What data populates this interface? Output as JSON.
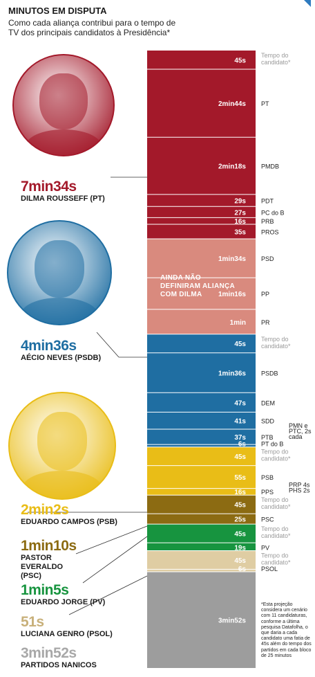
{
  "title": "MINUTOS EM DISPUTA",
  "subtitle": "Como cada aliança contribui para o tempo de TV dos principais candidatos à Presidência*",
  "note": "*Esta projeção considera um cenário com 11 candidatu­ras, conforme a última pesquisa Datafolha, o que daria a cada candidato uma fatia de 45s além do tempo dos partidos em cada bloco de 25 minutos",
  "overlay_text": "AINDA NÃO DEFINIRAM ALIANÇA COM DILMA",
  "colors": {
    "dilma": "#a3192a",
    "indef": "#d98a7e",
    "aecio": "#1f6ea2",
    "campos": "#e9bd17",
    "everaldo": "#8c6b12",
    "jorge": "#17943f",
    "genro": "#dfcda3",
    "nanicos": "#9d9d9d",
    "label_gray": "#9a9a9a"
  },
  "candidates": [
    {
      "time": "7min34s",
      "name": "DILMA ROUSSEFF (PT)",
      "color": "#a3192a"
    },
    {
      "time": "4min36s",
      "name": "AÉCIO NEVES (PSDB)",
      "color": "#1f6ea2"
    },
    {
      "time": "2min2s",
      "name": "EDUARDO CAMPOS (PSB)",
      "color": "#e9bd17"
    },
    {
      "time": "1min10s",
      "name": "PASTOR EVERALDO (PSC)",
      "color": "#8c6b12"
    },
    {
      "time": "1min5s",
      "name": "EDUARDO JORGE (PV)",
      "color": "#17943f"
    },
    {
      "time": "51s",
      "name": "LUCIANA GENRO (PSOL)",
      "color": "#c8b07a"
    },
    {
      "time": "3min52s",
      "name": "PARTIDOS NANICOS",
      "color": "#a8a8a8"
    }
  ],
  "photos": [
    {
      "icon": "portrait-dilma",
      "tone": "#a3192a"
    },
    {
      "icon": "portrait-aecio",
      "tone": "#1f6ea2"
    },
    {
      "icon": "portrait-campos",
      "tone": "#e9bd17"
    }
  ],
  "chart_data": {
    "type": "bar",
    "orientation": "stacked-vertical",
    "unit": "seconds",
    "segments": [
      {
        "label": "45s",
        "seconds": 45,
        "party": "Tempo do candidato*",
        "group": "dilma",
        "candidate_time": true
      },
      {
        "label": "2min44s",
        "seconds": 164,
        "party": "PT",
        "group": "dilma"
      },
      {
        "label": "2min18s",
        "seconds": 138,
        "party": "PMDB",
        "group": "dilma"
      },
      {
        "label": "29s",
        "seconds": 29,
        "party": "PDT",
        "group": "dilma"
      },
      {
        "label": "27s",
        "seconds": 27,
        "party": "PC do B",
        "group": "dilma"
      },
      {
        "label": "16s",
        "seconds": 16,
        "party": "PRB",
        "group": "dilma"
      },
      {
        "label": "35s",
        "seconds": 35,
        "party": "PROS",
        "group": "dilma"
      },
      {
        "label": "1min34s",
        "seconds": 94,
        "party": "PSD",
        "group": "indef"
      },
      {
        "label": "1min16s",
        "seconds": 76,
        "party": "PP",
        "group": "indef"
      },
      {
        "label": "1min",
        "seconds": 60,
        "party": "PR",
        "group": "indef"
      },
      {
        "label": "45s",
        "seconds": 45,
        "party": "Tempo do candidato*",
        "group": "aecio",
        "candidate_time": true
      },
      {
        "label": "1min36s",
        "seconds": 96,
        "party": "PSDB",
        "group": "aecio"
      },
      {
        "label": "47s",
        "seconds": 47,
        "party": "DEM",
        "group": "aecio"
      },
      {
        "label": "41s",
        "seconds": 41,
        "party": "SDD",
        "group": "aecio"
      },
      {
        "label": "37s",
        "seconds": 37,
        "party": "PTB",
        "group": "aecio",
        "side_note": "PMN e PTC, 2s cada"
      },
      {
        "label": "6s",
        "seconds": 6,
        "party": "PT do B",
        "group": "aecio"
      },
      {
        "label": "45s",
        "seconds": 45,
        "party": "Tempo do candidato*",
        "group": "campos",
        "candidate_time": true
      },
      {
        "label": "55s",
        "seconds": 55,
        "party": "PSB",
        "group": "campos"
      },
      {
        "label": "16s",
        "seconds": 16,
        "party": "PPS",
        "group": "campos",
        "side_note": "PRP 4s PHS 2s"
      },
      {
        "label": "45s",
        "seconds": 45,
        "party": "Tempo do candidato*",
        "group": "everaldo",
        "candidate_time": true
      },
      {
        "label": "25s",
        "seconds": 25,
        "party": "PSC",
        "group": "everaldo"
      },
      {
        "label": "45s",
        "seconds": 45,
        "party": "Tempo do candidato*",
        "group": "jorge",
        "candidate_time": true
      },
      {
        "label": "19s",
        "seconds": 19,
        "party": "PV",
        "group": "jorge"
      },
      {
        "label": "45s",
        "seconds": 45,
        "party": "Tempo do candidato*",
        "group": "genro",
        "candidate_time": true
      },
      {
        "label": "6s",
        "seconds": 6,
        "party": "PSOL",
        "group": "genro"
      },
      {
        "label": "3min52s",
        "seconds": 232,
        "party": "",
        "group": "nanicos"
      }
    ]
  }
}
